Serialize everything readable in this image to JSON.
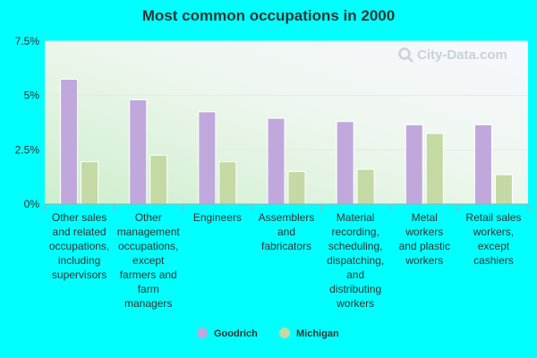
{
  "chart_data": {
    "type": "bar",
    "title": "Most common occupations in 2000",
    "categories": [
      "Other sales and related occupations, including supervisors",
      "Other management occupations, except farmers and farm managers",
      "Engineers",
      "Assemblers and fabricators",
      "Material recording, scheduling, dispatching, and distributing workers",
      "Metal workers and plastic workers",
      "Retail sales workers, except cashiers"
    ],
    "category_lines": [
      [
        "Other sales",
        "and related",
        "occupations,",
        "including",
        "supervisors"
      ],
      [
        "Other",
        "management",
        "occupations,",
        "except",
        "farmers and",
        "farm",
        "managers"
      ],
      [
        "Engineers"
      ],
      [
        "Assemblers",
        "and",
        "fabricators"
      ],
      [
        "Material",
        "recording,",
        "scheduling,",
        "dispatching,",
        "and",
        "distributing",
        "workers"
      ],
      [
        "Metal",
        "workers",
        "and plastic",
        "workers"
      ],
      [
        "Retail sales",
        "workers,",
        "except",
        "cashiers"
      ]
    ],
    "series": [
      {
        "name": "Goodrich",
        "color": "#c0a8dc",
        "values": [
          5.75,
          4.8,
          4.25,
          3.95,
          3.8,
          3.65,
          3.65
        ]
      },
      {
        "name": "Michigan",
        "color": "#c4d9a4",
        "values": [
          1.95,
          2.25,
          1.95,
          1.5,
          1.6,
          3.25,
          1.35
        ]
      }
    ],
    "ylim": [
      0,
      7.5
    ],
    "yticks": [
      0,
      2.5,
      5,
      7.5
    ],
    "ytick_labels": [
      "0%",
      "2.5%",
      "5%",
      "7.5%"
    ],
    "grid": true,
    "legend_position": "bottom-center",
    "xlabel": "",
    "ylabel": ""
  },
  "watermark": {
    "text": "City-Data.com",
    "icon": "magnifier-icon"
  },
  "colors": {
    "background": "#00ffff",
    "text": "#333333"
  }
}
